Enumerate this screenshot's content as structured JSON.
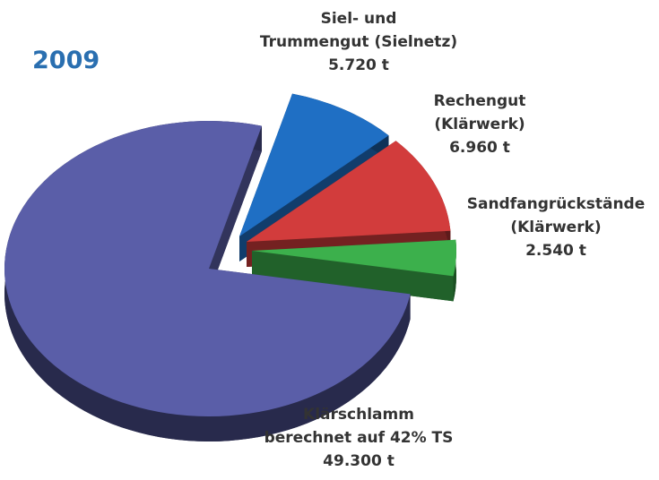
{
  "chart_data": {
    "type": "pie",
    "title": "2009",
    "categories": [
      "Siel- und\nTrummengut (Sielnetz)",
      "Rechengut\n(Klärwerk)",
      "Sandfangrückstände\n(Klärwerk)",
      "Klärschlamm\nberechnet auf 42% TS"
    ],
    "values": [
      5720,
      6960,
      2540,
      49300
    ],
    "value_labels": [
      "5.720 t",
      "6.960 t",
      "2.540 t",
      "49.300 t"
    ],
    "colors": [
      "#1f6fc4",
      "#d23c3c",
      "#3cb04c",
      "#5a5ea8"
    ]
  }
}
